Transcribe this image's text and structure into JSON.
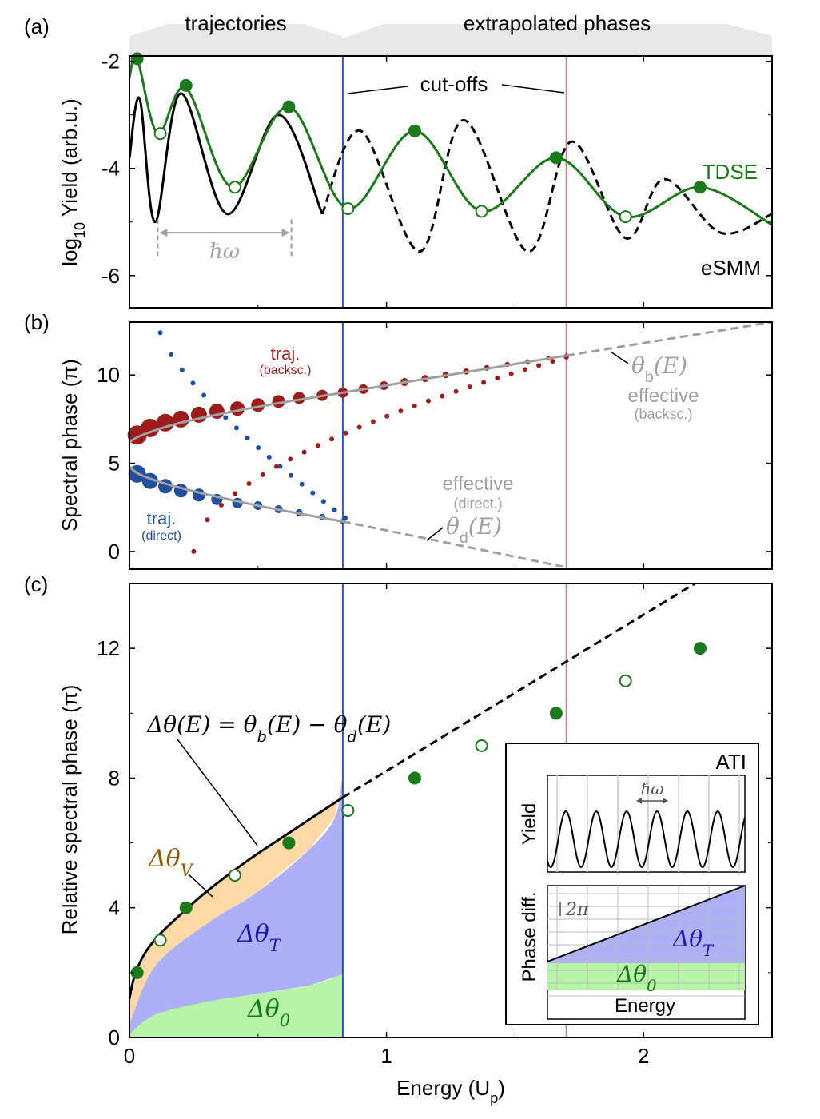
{
  "colors": {
    "tdse": "#1a7a1a",
    "esmm": "#000000",
    "blue": "#1f4f9e",
    "red": "#9e1b1b",
    "gray": "#a0a0a0",
    "cutoff_blue": "#2a5ca8",
    "cutoff_red": "#c47a7a",
    "orange_fill": "#fdd9a8",
    "blue_fill": "#aeb0f7",
    "green_fill": "#b7f4a8",
    "dtv_text": "#8a5a00",
    "dtt_text": "#1a1ab0",
    "dt0_text": "#1a7a1a"
  },
  "labels": {
    "panel_a": "(a)",
    "panel_b": "(b)",
    "panel_c": "(c)",
    "trajectories": "trajectories",
    "extrapolated": "extrapolated phases",
    "cutoffs": "cut-offs",
    "hbar_omega": "ℏω",
    "tdse": "TDSE",
    "esmm": "eSMM",
    "ylabel_a_pre": "log",
    "ylabel_a_sub": "10",
    "ylabel_a_post": " Yield (arb.u.)",
    "ylabel_b": "Spectral phase (π)",
    "ylabel_c": "Relative spectral phase (π)",
    "xlabel_pre": "Energy (U",
    "xlabel_sub": "p",
    "xlabel_post": ")",
    "traj_backsc_1": "traj.",
    "traj_backsc_2": "(backsc.)",
    "traj_direct_1": "traj.",
    "traj_direct_2": "(direct)",
    "theta_b": "θ",
    "theta_b_sub": "b",
    "theta_b_arg": "(E)",
    "effective_b_1": "effective",
    "effective_b_2": "(backsc.)",
    "effective_d_1": "effective",
    "effective_d_2": "(direct.)",
    "theta_d": "θ",
    "theta_d_sub": "d",
    "theta_d_arg": "(E)",
    "delta_eq": "Δθ(E) = θ",
    "delta_eq_b": "b",
    "delta_eq_mid": "(E) − θ",
    "delta_eq_d": "d",
    "delta_eq_end": "(E)",
    "dtv": "Δθ",
    "dtv_sub": "V",
    "dtt": "Δθ",
    "dtt_sub": "T",
    "dt0": "Δθ",
    "dt0_sub": "0",
    "inset_ati": "ATI",
    "inset_yield": "Yield",
    "inset_phase": "Phase diff.",
    "inset_energy": "Energy",
    "inset_hw": "ℏω",
    "inset_2pi": "2π"
  },
  "chart_data": [
    {
      "panel": "(a)",
      "type": "line",
      "xlabel": "Energy (Up)",
      "ylabel": "log10 Yield (arb.u.)",
      "xlim": [
        0,
        2.5
      ],
      "ylim": [
        -6.6,
        -1.9
      ],
      "yticks": [
        -2,
        -4,
        -6
      ],
      "xticks": [
        0,
        1,
        2
      ],
      "cutoffs": [
        0.83,
        1.7
      ],
      "series": [
        {
          "name": "TDSE",
          "x": [
            0.0,
            0.03,
            0.11,
            0.22,
            0.4,
            0.62,
            0.85,
            1.11,
            1.37,
            1.66,
            1.93,
            2.22,
            2.5
          ],
          "y": [
            -2.3,
            -1.95,
            -3.35,
            -2.5,
            -4.35,
            -2.85,
            -4.75,
            -3.3,
            -4.8,
            -3.8,
            -4.9,
            -4.35,
            -5.05
          ]
        },
        {
          "name": "eSMM",
          "x": [
            0.0,
            0.04,
            0.1,
            0.2,
            0.38,
            0.58,
            0.75,
            0.9,
            1.13,
            1.3,
            1.55,
            1.72,
            1.93,
            2.08,
            2.3,
            2.5
          ],
          "y": [
            -3.8,
            -2.7,
            -5.0,
            -2.6,
            -4.85,
            -3.0,
            -4.85,
            -3.3,
            -5.55,
            -3.1,
            -5.55,
            -3.5,
            -5.3,
            -4.2,
            -5.2,
            -4.85
          ]
        }
      ],
      "markers_filled": {
        "x": [
          0.03,
          0.22,
          0.62,
          1.11,
          1.66,
          2.22
        ],
        "y": [
          -1.95,
          -2.45,
          -2.85,
          -3.3,
          -3.8,
          -4.35
        ]
      },
      "markers_open": {
        "x": [
          0.12,
          0.41,
          0.85,
          1.37,
          1.93
        ],
        "y": [
          -3.35,
          -4.35,
          -4.75,
          -4.8,
          -4.9
        ]
      },
      "hbar_omega": [
        0.11,
        0.63
      ]
    },
    {
      "panel": "(b)",
      "type": "scatter",
      "ylabel": "Spectral phase (π)",
      "xlim": [
        0,
        2.5
      ],
      "ylim": [
        -1,
        13
      ],
      "yticks": [
        0,
        5,
        10
      ],
      "backsc_traj": {
        "x": [
          0.03,
          0.08,
          0.14,
          0.2,
          0.27,
          0.34,
          0.42,
          0.5,
          0.58,
          0.66,
          0.75,
          0.83,
          0.91,
          0.99,
          1.07,
          1.15,
          1.23,
          1.31,
          1.39,
          1.47,
          1.55,
          1.63,
          1.7
        ],
        "y": [
          6.6,
          7.0,
          7.3,
          7.5,
          7.75,
          7.95,
          8.1,
          8.3,
          8.5,
          8.7,
          8.85,
          9.0,
          9.2,
          9.4,
          9.6,
          9.8,
          10.0,
          10.2,
          10.4,
          10.6,
          10.75,
          10.95,
          11.1
        ],
        "r": [
          12,
          11.5,
          11,
          10.5,
          10,
          9.5,
          9,
          8.5,
          8,
          7.5,
          7,
          6.5,
          6,
          5.5,
          5,
          4.5,
          4,
          3.8,
          3.5,
          3.2,
          3,
          2.8,
          2.5
        ]
      },
      "direct_traj": {
        "x": [
          0.03,
          0.08,
          0.14,
          0.2,
          0.27,
          0.34,
          0.42,
          0.5,
          0.58,
          0.66,
          0.75,
          0.83
        ],
        "y": [
          4.4,
          4.0,
          3.7,
          3.45,
          3.2,
          2.95,
          2.75,
          2.6,
          2.4,
          2.2,
          1.95,
          1.7
        ],
        "r": [
          11,
          10,
          9,
          8.5,
          8,
          7,
          6.5,
          5.5,
          5,
          4.5,
          4,
          3.5
        ]
      },
      "theta_b": {
        "x": [
          0.0,
          0.05,
          0.2,
          0.5,
          0.83,
          1.2,
          1.7,
          2.5
        ],
        "y": [
          6.2,
          6.6,
          7.3,
          8.2,
          9.0,
          9.9,
          11.1,
          13.0
        ]
      },
      "theta_d": {
        "x": [
          0.0,
          0.05,
          0.2,
          0.5,
          0.83,
          1.2,
          1.7
        ],
        "y": [
          4.8,
          4.3,
          3.6,
          2.6,
          1.7,
          0.6,
          -0.9
        ]
      }
    },
    {
      "panel": "(c)",
      "type": "scatter",
      "ylabel": "Relative spectral phase (π)",
      "xlabel": "Energy (Up)",
      "xlim": [
        0,
        2.5
      ],
      "ylim": [
        0,
        14
      ],
      "yticks": [
        0,
        4,
        8,
        12
      ],
      "xticks": [
        0,
        1,
        2
      ],
      "markers_filled": {
        "x": [
          0.03,
          0.22,
          0.62,
          1.11,
          1.66,
          2.22
        ],
        "y": [
          2,
          4,
          6,
          8,
          10,
          12
        ]
      },
      "markers_open": {
        "x": [
          0.12,
          0.41,
          0.85,
          1.37,
          1.93
        ],
        "y": [
          3,
          5,
          7,
          9,
          11
        ]
      },
      "delta_theta": {
        "x": [
          0.0,
          0.02,
          0.06,
          0.12,
          0.2,
          0.3,
          0.45,
          0.6,
          0.83
        ],
        "y": [
          1.2,
          1.9,
          2.6,
          3.2,
          3.8,
          4.5,
          5.4,
          6.2,
          7.4
        ]
      },
      "extrapolation": {
        "x": [
          0.83,
          2.2
        ],
        "y": [
          7.4,
          14.0
        ]
      },
      "dt_upper": {
        "x": [
          0.0,
          0.1,
          0.3,
          0.5,
          0.7,
          0.8,
          0.83
        ],
        "y": [
          0.4,
          2.2,
          3.5,
          4.5,
          5.8,
          6.8,
          8.1
        ]
      },
      "dt_lower": {
        "x": [
          0.0,
          0.1,
          0.3,
          0.5,
          0.7,
          0.83
        ],
        "y": [
          0.1,
          0.7,
          1.1,
          1.35,
          1.6,
          1.95
        ]
      }
    }
  ]
}
